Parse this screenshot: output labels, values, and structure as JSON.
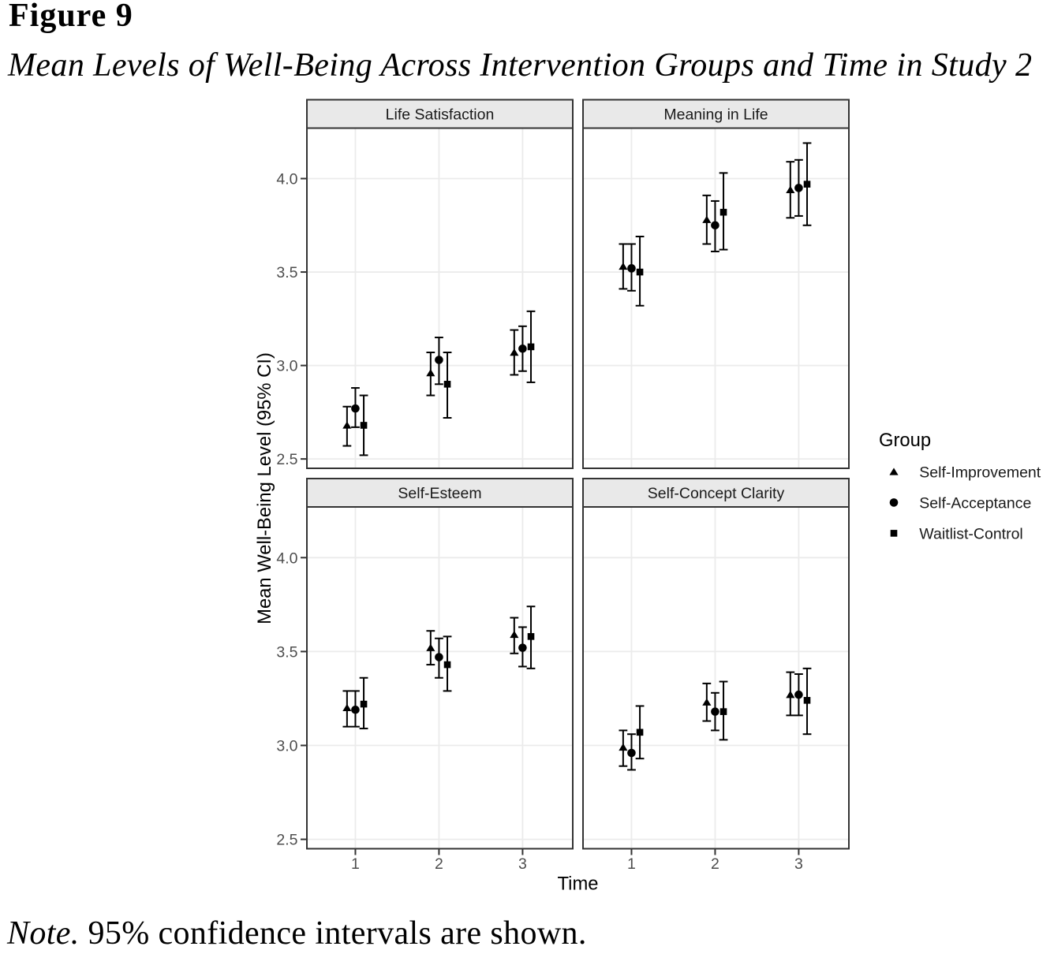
{
  "figure": {
    "label": "Figure 9",
    "title": "Mean Levels of Well-Being Across Intervention Groups and Time in Study 2"
  },
  "note": {
    "prefix": "Note.",
    "text": " 95% confidence intervals are shown."
  },
  "chart_data": {
    "type": "pointrange_facets",
    "x": [
      1,
      2,
      3
    ],
    "x_ticks": [
      "1",
      "2",
      "3"
    ],
    "xlabel": "Time",
    "ylabel": "Mean Well-Being Level (95% CI)",
    "y_ticks": [
      "2.5",
      "3.0",
      "3.5",
      "4.0"
    ],
    "y_tick_values": [
      2.5,
      3.0,
      3.5,
      4.0
    ],
    "ylim": [
      2.45,
      4.27
    ],
    "xlim": [
      0.42,
      3.6
    ],
    "grid": "major-only",
    "legend": {
      "title": "Group",
      "position": "right",
      "entries": [
        "Self-Improvement",
        "Self-Acceptance",
        "Waitlist-Control"
      ]
    },
    "groups": [
      {
        "name": "Self-Improvement",
        "marker": "triangle",
        "dodge": -0.1
      },
      {
        "name": "Self-Acceptance",
        "marker": "circle",
        "dodge": 0
      },
      {
        "name": "Waitlist-Control",
        "marker": "square",
        "dodge": 0.1
      }
    ],
    "facets": [
      {
        "label": "Life Satisfaction",
        "series": [
          {
            "group": "Self-Improvement",
            "mean": [
              2.68,
              2.96,
              3.07
            ],
            "ci_low": [
              2.57,
              2.84,
              2.95
            ],
            "ci_high": [
              2.78,
              3.07,
              3.19
            ]
          },
          {
            "group": "Self-Acceptance",
            "mean": [
              2.77,
              3.03,
              3.09
            ],
            "ci_low": [
              2.67,
              2.9,
              2.97
            ],
            "ci_high": [
              2.88,
              3.15,
              3.21
            ]
          },
          {
            "group": "Waitlist-Control",
            "mean": [
              2.68,
              2.9,
              3.1
            ],
            "ci_low": [
              2.52,
              2.72,
              2.91
            ],
            "ci_high": [
              2.84,
              3.07,
              3.29
            ]
          }
        ]
      },
      {
        "label": "Meaning in Life",
        "series": [
          {
            "group": "Self-Improvement",
            "mean": [
              3.53,
              3.78,
              3.94
            ],
            "ci_low": [
              3.41,
              3.65,
              3.79
            ],
            "ci_high": [
              3.65,
              3.91,
              4.09
            ]
          },
          {
            "group": "Self-Acceptance",
            "mean": [
              3.52,
              3.75,
              3.95
            ],
            "ci_low": [
              3.4,
              3.61,
              3.8
            ],
            "ci_high": [
              3.65,
              3.88,
              4.1
            ]
          },
          {
            "group": "Waitlist-Control",
            "mean": [
              3.5,
              3.82,
              3.97
            ],
            "ci_low": [
              3.32,
              3.62,
              3.75
            ],
            "ci_high": [
              3.69,
              4.03,
              4.19
            ]
          }
        ]
      },
      {
        "label": "Self-Esteem",
        "series": [
          {
            "group": "Self-Improvement",
            "mean": [
              3.2,
              3.52,
              3.59
            ],
            "ci_low": [
              3.1,
              3.43,
              3.49
            ],
            "ci_high": [
              3.29,
              3.61,
              3.68
            ]
          },
          {
            "group": "Self-Acceptance",
            "mean": [
              3.19,
              3.47,
              3.52
            ],
            "ci_low": [
              3.1,
              3.36,
              3.42
            ],
            "ci_high": [
              3.29,
              3.57,
              3.63
            ]
          },
          {
            "group": "Waitlist-Control",
            "mean": [
              3.22,
              3.43,
              3.58
            ],
            "ci_low": [
              3.09,
              3.29,
              3.41
            ],
            "ci_high": [
              3.36,
              3.58,
              3.74
            ]
          }
        ]
      },
      {
        "label": "Self-Concept Clarity",
        "series": [
          {
            "group": "Self-Improvement",
            "mean": [
              2.99,
              3.23,
              3.27
            ],
            "ci_low": [
              2.89,
              3.13,
              3.16
            ],
            "ci_high": [
              3.08,
              3.33,
              3.39
            ]
          },
          {
            "group": "Self-Acceptance",
            "mean": [
              2.96,
              3.18,
              3.27
            ],
            "ci_low": [
              2.87,
              3.08,
              3.16
            ],
            "ci_high": [
              3.06,
              3.28,
              3.38
            ]
          },
          {
            "group": "Waitlist-Control",
            "mean": [
              3.07,
              3.18,
              3.24
            ],
            "ci_low": [
              2.93,
              3.03,
              3.06
            ],
            "ci_high": [
              3.21,
              3.34,
              3.41
            ]
          }
        ]
      }
    ],
    "colors": {
      "marker": "#000000",
      "strip_fill": "#E9E9E9",
      "panel_border": "#333333",
      "gridline": "#EBEBEB",
      "tick_text": "#4D4D4D",
      "strip_text": "#1A1A1A",
      "axis_title": "#000000",
      "legend_text": "#1A1A1A",
      "tick_mark": "#333333"
    }
  }
}
